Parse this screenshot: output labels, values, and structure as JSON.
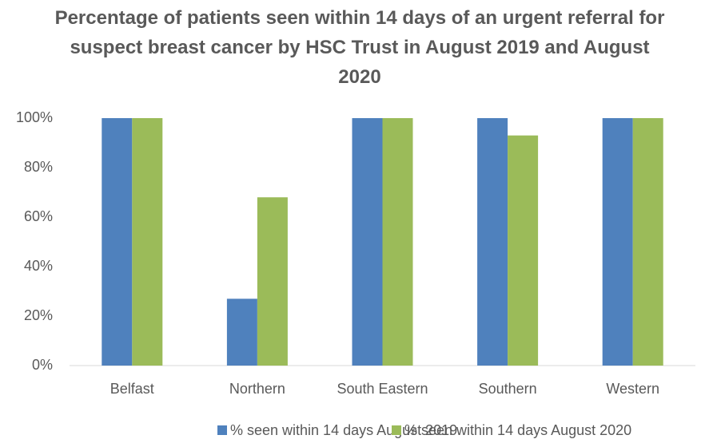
{
  "chart_data": {
    "type": "bar",
    "title": "Percentage of patients seen within 14 days of an urgent referral for suspect breast cancer by HSC Trust in August 2019 and August 2020",
    "categories": [
      "Belfast",
      "Northern",
      "South Eastern",
      "Southern",
      "Western"
    ],
    "series": [
      {
        "name": "% seen within 14 days August 2019",
        "color": "#4f81bd",
        "values": [
          100,
          27,
          100,
          100,
          100
        ]
      },
      {
        "name": "% seen within 14 days August 2020",
        "color": "#9bbb59",
        "values": [
          100,
          68,
          100,
          93,
          100
        ]
      }
    ],
    "ylim": [
      0,
      100
    ],
    "yticks": [
      {
        "value": 0,
        "label": "0%"
      },
      {
        "value": 20,
        "label": "20%"
      },
      {
        "value": 40,
        "label": "40%"
      },
      {
        "value": 60,
        "label": "60%"
      },
      {
        "value": 80,
        "label": "80%"
      },
      {
        "value": 100,
        "label": "100%"
      }
    ],
    "grid": false,
    "legend": "bottom"
  }
}
